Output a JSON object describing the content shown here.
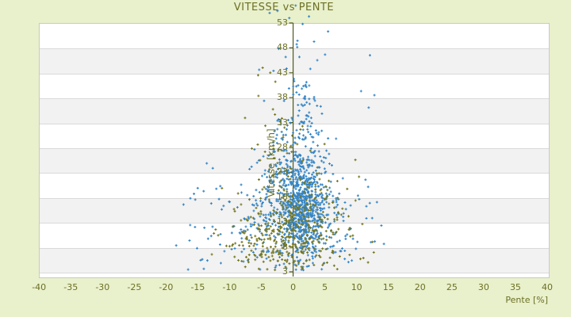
{
  "chart": {
    "title": "VITESSE vs PENTE",
    "x_axis_title": "Pente [%]",
    "y_axis_title": "Vitesse [km/h]",
    "colors": {
      "background": "#e9f0cc",
      "plot_bg": "#ffffff",
      "band_alt": "#f2f2f2",
      "grid_line": "#d9d9d9",
      "plot_border": "#c9c9c9",
      "text": "#6c7024",
      "axis_line": "#50591c",
      "series_blue": "#3585c5",
      "series_olive": "#75771f"
    }
  },
  "chart_data": {
    "type": "scatter",
    "title": "VITESSE vs PENTE",
    "xlabel": "Pente [%]",
    "ylabel": "Vitesse [km/h]",
    "xlim": [
      -40,
      40
    ],
    "ylim": [
      3,
      53
    ],
    "x_ticks": [
      -40,
      -35,
      -30,
      -25,
      -20,
      -15,
      -10,
      -5,
      0,
      5,
      10,
      15,
      20,
      25,
      30,
      35,
      40
    ],
    "y_ticks": [
      53,
      48,
      43,
      38,
      33,
      28,
      23,
      18,
      13,
      8,
      3
    ],
    "grid": "horizontal bands every 5 km/h, alternating white and light grey",
    "legend": "none",
    "marker": "plus",
    "series": [
      {
        "name": "points-bleus",
        "color": "#3585c5",
        "seed": 7,
        "clip": {
          "x": [
            -19.5,
            14.6
          ],
          "y": [
            3.3,
            56.5
          ]
        },
        "clusters": [
          {
            "n": 520,
            "mx": 1.4,
            "sx": 1.6,
            "my": 16,
            "sy": 5.2
          },
          {
            "n": 240,
            "mx": 0.6,
            "sx": 3.0,
            "my": 22,
            "sy": 6.5
          },
          {
            "n": 200,
            "mx": -0.8,
            "sx": 5.0,
            "my": 13,
            "sy": 5.5
          },
          {
            "n": 120,
            "mx": -2.0,
            "sx": 7.5,
            "my": 13,
            "sy": 6.0
          },
          {
            "n": 100,
            "mx": 0.8,
            "sx": 2.2,
            "my": 34,
            "sy": 8.0
          },
          {
            "n": 70,
            "mx": 6.0,
            "sx": 3.0,
            "my": 15,
            "sy": 6.0
          }
        ],
        "outlier_points": [
          [
            12.1,
            46.5
          ],
          [
            5.5,
            51.3
          ],
          [
            0.4,
            56.5
          ],
          [
            -3.7,
            55.0
          ],
          [
            2.5,
            54.3
          ],
          [
            -0.6,
            54.0
          ],
          [
            1.5,
            52.8
          ],
          [
            12.8,
            38.5
          ],
          [
            11.9,
            36.0
          ],
          [
            10.7,
            39.3
          ],
          [
            -15.4,
            17.5
          ],
          [
            -18.4,
            8.3
          ],
          [
            -13.6,
            24.8
          ],
          [
            -12.9,
            10.2
          ],
          [
            13.9,
            12.3
          ],
          [
            14.3,
            8.6
          ],
          [
            11.4,
            21.5
          ],
          [
            13.2,
            17.0
          ],
          [
            -16.2,
            12.4
          ]
        ]
      },
      {
        "name": "points-olive",
        "color": "#75771f",
        "seed": 13,
        "clip": {
          "x": [
            -13.4,
            13.6
          ],
          "y": [
            3.3,
            44.5
          ]
        },
        "clusters": [
          {
            "n": 210,
            "mx": -0.8,
            "sx": 3.8,
            "my": 11,
            "sy": 4.8
          },
          {
            "n": 90,
            "mx": -5.5,
            "sx": 3.0,
            "my": 9,
            "sy": 4.0
          },
          {
            "n": 80,
            "mx": 3.2,
            "sx": 2.8,
            "my": 12.5,
            "sy": 5.5
          },
          {
            "n": 60,
            "mx": -1.5,
            "sx": 2.6,
            "my": 23,
            "sy": 7.5
          }
        ],
        "outlier_points": [
          [
            -4.8,
            44.0
          ],
          [
            -3.6,
            43.0
          ],
          [
            -5.5,
            42.5
          ],
          [
            -2.8,
            41.2
          ],
          [
            12.5,
            9.0
          ],
          [
            -12.8,
            6.5
          ],
          [
            9.8,
            25.5
          ],
          [
            -11.2,
            19.8
          ],
          [
            8.9,
            6.4
          ],
          [
            10.6,
            5.6
          ],
          [
            11.8,
            4.9
          ],
          [
            12.7,
            6.9
          ],
          [
            9.4,
            10.3
          ],
          [
            10.9,
            12.6
          ],
          [
            -10.5,
            8.2
          ],
          [
            -12.2,
            11.5
          ]
        ]
      }
    ]
  }
}
